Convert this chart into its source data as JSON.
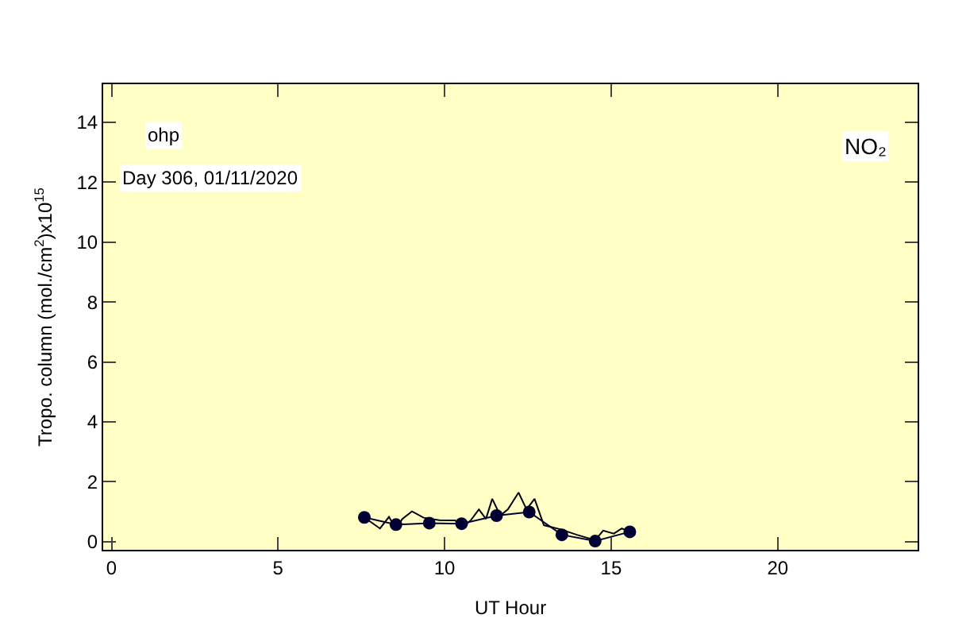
{
  "chart_data": {
    "type": "line",
    "xlabel": "UT Hour",
    "ylabel": "Tropo. column (mol./cm$^{2}$)x10$^{15}$",
    "annotations": [
      "ohp",
      "Day 306, 01/11/2020",
      "NO₂"
    ],
    "xlim": [
      -0.25,
      24.2
    ],
    "xticks": [
      0,
      5,
      10,
      15,
      20
    ],
    "ylim": [
      -0.27,
      15.27
    ],
    "yticks": [
      0,
      2,
      4,
      6,
      8,
      10,
      12,
      14
    ],
    "grid": false,
    "series": [
      {
        "color": "#000000",
        "marker": "none",
        "x": [
          7.59,
          8.06,
          8.33,
          8.54,
          8.73,
          9.02,
          9.37,
          9.84,
          10.32,
          10.51,
          10.79,
          11.03,
          11.24,
          11.43,
          11.67,
          11.9,
          12.22,
          12.46,
          12.7,
          12.98,
          13.49,
          13.97,
          14.52,
          14.76,
          15.08,
          15.32,
          15.56
        ],
        "values": [
          0.81,
          0.44,
          0.83,
          0.41,
          0.76,
          1.01,
          0.8,
          0.72,
          0.71,
          0.46,
          0.72,
          1.08,
          0.76,
          1.43,
          0.87,
          1.08,
          1.64,
          1.08,
          1.43,
          0.55,
          0.41,
          0.23,
          0.05,
          0.37,
          0.27,
          0.44,
          0.33
        ]
      },
      {
        "color": "#000033",
        "marker": "circle",
        "x": [
          7.59,
          8.54,
          9.54,
          10.51,
          11.56,
          12.54,
          13.52,
          14.52,
          15.56
        ],
        "values": [
          0.81,
          0.57,
          0.62,
          0.6,
          0.87,
          0.99,
          0.23,
          0.02,
          0.33
        ]
      }
    ]
  }
}
